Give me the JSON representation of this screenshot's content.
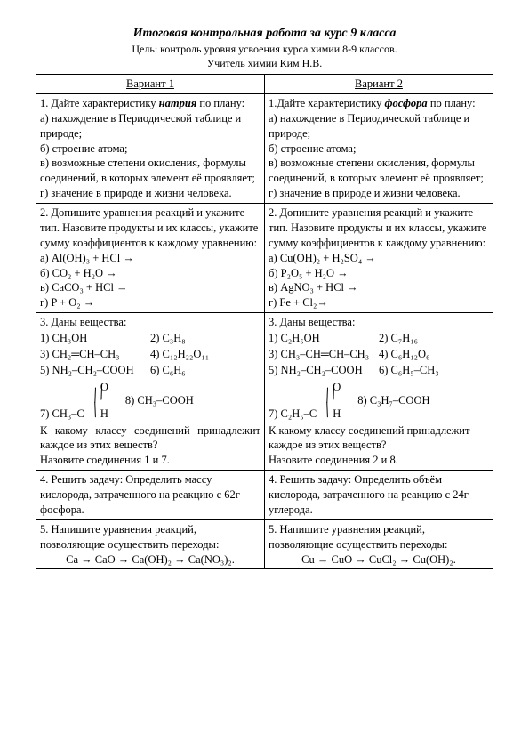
{
  "header": {
    "title": "Итоговая контрольная работа за курс 9 класса",
    "subtitle": "Цель: контроль уровня усвоения курса химии 8-9 классов.",
    "teacher": "Учитель химии Ким Н.В."
  },
  "columns": {
    "v1": "Вариант 1",
    "v2": "Вариант 2"
  },
  "q1": {
    "v1": {
      "lead": "1. Дайте характеристику ",
      "elem": "натрия",
      "tail": " по плану:",
      "a": "а) нахождение в Периодической таблице и природе;",
      "b": "б) строение атома;",
      "c": "в) возможные степени окисления, формулы соединений, в которых элемент её проявляет;",
      "d": "г) значение в природе и жизни человека."
    },
    "v2": {
      "lead": "1.Дайте характеристику ",
      "elem": "фосфора",
      "tail": " по плану:",
      "a": "а) нахождение в Периодической таблице и природе;",
      "b": "б) строение атома;",
      "c": "в) возможные степени окисления, формулы соединений, в которых элемент её проявляет;",
      "d": "г) значение в природе и жизни человека."
    }
  },
  "q2": {
    "intro": "2. Допишите уравнения реакций и укажите тип. Назовите продукты и их классы, укажите сумму коэффициентов к каждому уравнению:",
    "v1": {
      "a": "а)    Al(OH)₃ + HCl →",
      "b": "б)    CO₂ + H₂O →",
      "c": "в)    CaCO₃ + HCl →",
      "d": "г)    P +  O₂ →"
    },
    "v2": {
      "a": "а)   Cu(OH)₂ + H₂SO₄ →",
      "b": "б)   P₂O₅ + H₂O →",
      "c": "в)   AgNO₃ + HCl →",
      "d": "г)   Fe + Cl₂→"
    }
  },
  "q3": {
    "intro": "3. Даны вещества:",
    "v1": {
      "f1": "1) CH₃OH",
      "f2": "2) C₃H₈",
      "f3": "3) CH₂═CH–CH₃",
      "f4": "4) C₁₂H₂₂O₁₁",
      "f5": "5) NH₂–CH₂–COOH",
      "f6": "6) C₆H₆",
      "f7_pref": "7) CH₃–C",
      "f8": "8) CH₃–COOH",
      "ask1": "К какому классу соединений принадлежит каждое из этих веществ?",
      "ask2": "Назовите соединения 1 и 7."
    },
    "v2": {
      "f1": "1) C₂H₅OH",
      "f2": "2) C₇H₁₆",
      "f3": "3) CH₃–CH═CH–CH₃",
      "f4": "4) C₆H₁₂O₆",
      "f5": "5) NH₂–CH₂–COOH",
      "f6": "6) C₆H₅–CH₃",
      "f7_pref": "7) C₂H₅–C",
      "f8": "8) C₃H₇–COOH",
      "ask1": "К какому классу соединений принадлежит каждое из этих веществ?",
      "ask2": "Назовите соединения 2 и 8."
    }
  },
  "q4": {
    "v1": "4. Решить задачу:  Определить массу кислорода, затраченного на реакцию с 62г фосфора.",
    "v2": "4. Решить задачу:  Определить объём кислорода, затраченного на реакцию с 24г углерода."
  },
  "q5": {
    "intro": "5. Напишите уравнения реакций, позволяющие осуществить переходы:",
    "v1_chain": "Ca → CaO → Ca(OH)₂ → Ca(NO₃)₂.",
    "v2_chain": "Cu → CuO → CuCl₂ → Cu(OH)₂."
  }
}
